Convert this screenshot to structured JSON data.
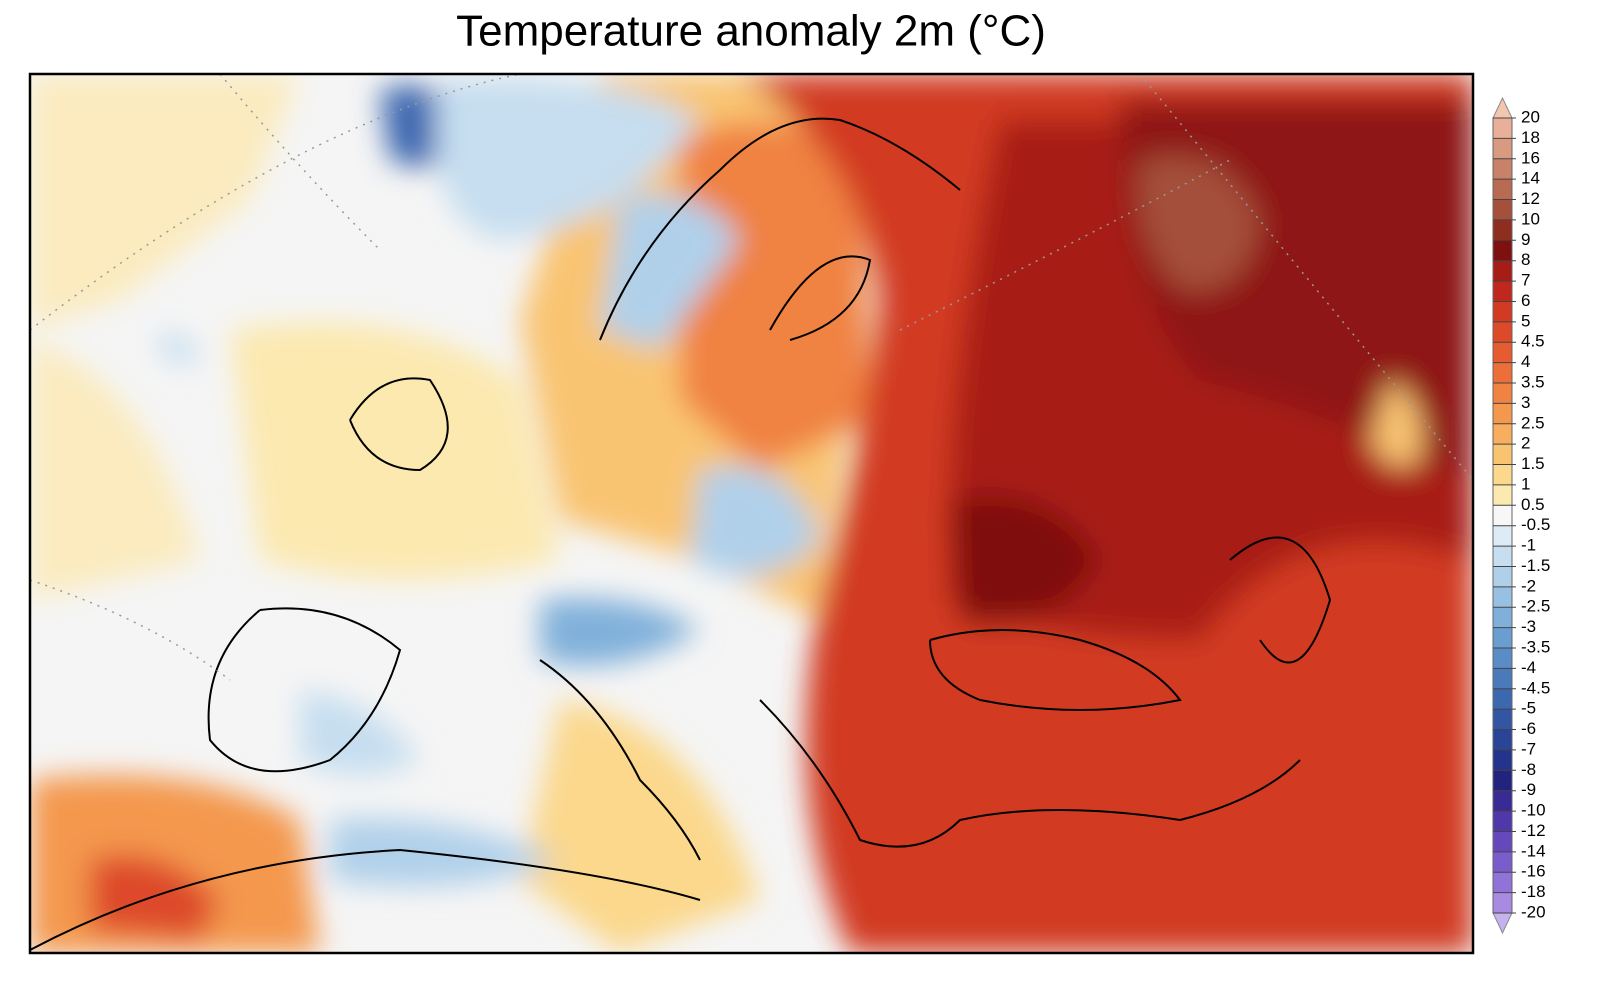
{
  "map": {
    "title": "Temperature anomaly 2m (°C)",
    "colorbar": {
      "levels": [
        20,
        18,
        16,
        14,
        12,
        10,
        9,
        8,
        7,
        6,
        5,
        4.5,
        4,
        3.5,
        3,
        2.5,
        2,
        1.5,
        1,
        0.5,
        -0.5,
        -1,
        -1.5,
        -2,
        -2.5,
        -3,
        -3.5,
        -4,
        -4.5,
        -5,
        -6,
        -7,
        -8,
        -9,
        -10,
        -12,
        -14,
        -16,
        -18,
        -20
      ],
      "colors": [
        "#f3c6b0",
        "#e8b09a",
        "#d99a82",
        "#c9826a",
        "#b86a52",
        "#a4503a",
        "#8f2e1e",
        "#7f1010",
        "#a81c16",
        "#c0281e",
        "#d23a24",
        "#dd4a2a",
        "#e65c30",
        "#ec6e38",
        "#f08242",
        "#f4984e",
        "#f7ae5e",
        "#f9c472",
        "#fbd88c",
        "#fce9b0",
        "#f7f7f7",
        "#dcebf6",
        "#c6def0",
        "#b0d0ea",
        "#98c0e2",
        "#80b0da",
        "#6a9ed0",
        "#5a8cc6",
        "#4a7aba",
        "#3c68b0",
        "#3256a4",
        "#2a4498",
        "#24338c",
        "#22227f",
        "#3a2a96",
        "#5038aa",
        "#6448bc",
        "#7a5ccc",
        "#9072d8",
        "#a88ae2",
        "#c6b2ee"
      ]
    }
  }
}
